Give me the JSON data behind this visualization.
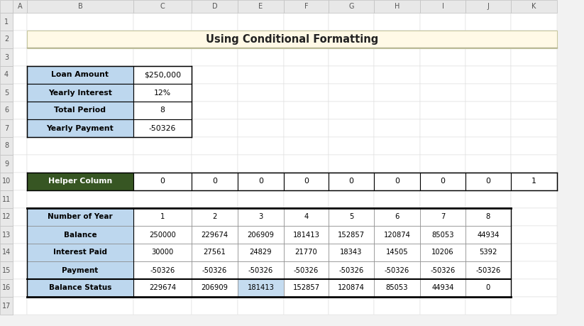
{
  "title": "Using Conditional Formatting",
  "title_bg": "#FFF9E6",
  "title_border": "#C8C8A0",
  "col_headers": [
    "A",
    "B",
    "C",
    "D",
    "E",
    "F",
    "G",
    "H",
    "I",
    "J",
    "K"
  ],
  "row_headers": [
    "1",
    "2",
    "3",
    "4",
    "5",
    "6",
    "7",
    "8",
    "9",
    "10",
    "11",
    "12",
    "13",
    "14",
    "15",
    "16",
    "17"
  ],
  "info_labels": [
    "Loan Amount",
    "Yearly Interest",
    "Total Period",
    "Yearly Payment"
  ],
  "info_values": [
    "$250,000",
    "12%",
    "8",
    "-50326"
  ],
  "info_label_bg": "#BDD7EE",
  "info_value_bg": "#FFFFFF",
  "helper_label": "Helper Column",
  "helper_label_bg": "#375623",
  "helper_label_fg": "#FFFFFF",
  "helper_values": [
    0,
    0,
    0,
    0,
    0,
    0,
    0,
    0,
    1
  ],
  "table_row_labels": [
    "Number of Year",
    "Balance",
    "Interest Paid",
    "Payment",
    "Balance Status"
  ],
  "table_row_label_bg": "#BDD7EE",
  "table_data": [
    [
      1,
      2,
      3,
      4,
      5,
      6,
      7,
      8
    ],
    [
      250000,
      229674,
      206909,
      181413,
      152857,
      120874,
      85053,
      44934
    ],
    [
      30000,
      27561,
      24829,
      21770,
      18343,
      14505,
      10206,
      5392
    ],
    [
      -50326,
      -50326,
      -50326,
      -50326,
      -50326,
      -50326,
      -50326,
      -50326
    ],
    [
      229674,
      206909,
      181413,
      152857,
      120874,
      85053,
      44934,
      0
    ]
  ],
  "balance_status_highlight_col": 2,
  "balance_status_highlight_bg": "#C5DCF0",
  "outer_bg": "#F2F2F2",
  "header_bg": "#E8E8E8",
  "header_edge": "#C0C0C0",
  "cell_edge_light": "#C0C0C0",
  "cell_edge_dark": "#000000"
}
